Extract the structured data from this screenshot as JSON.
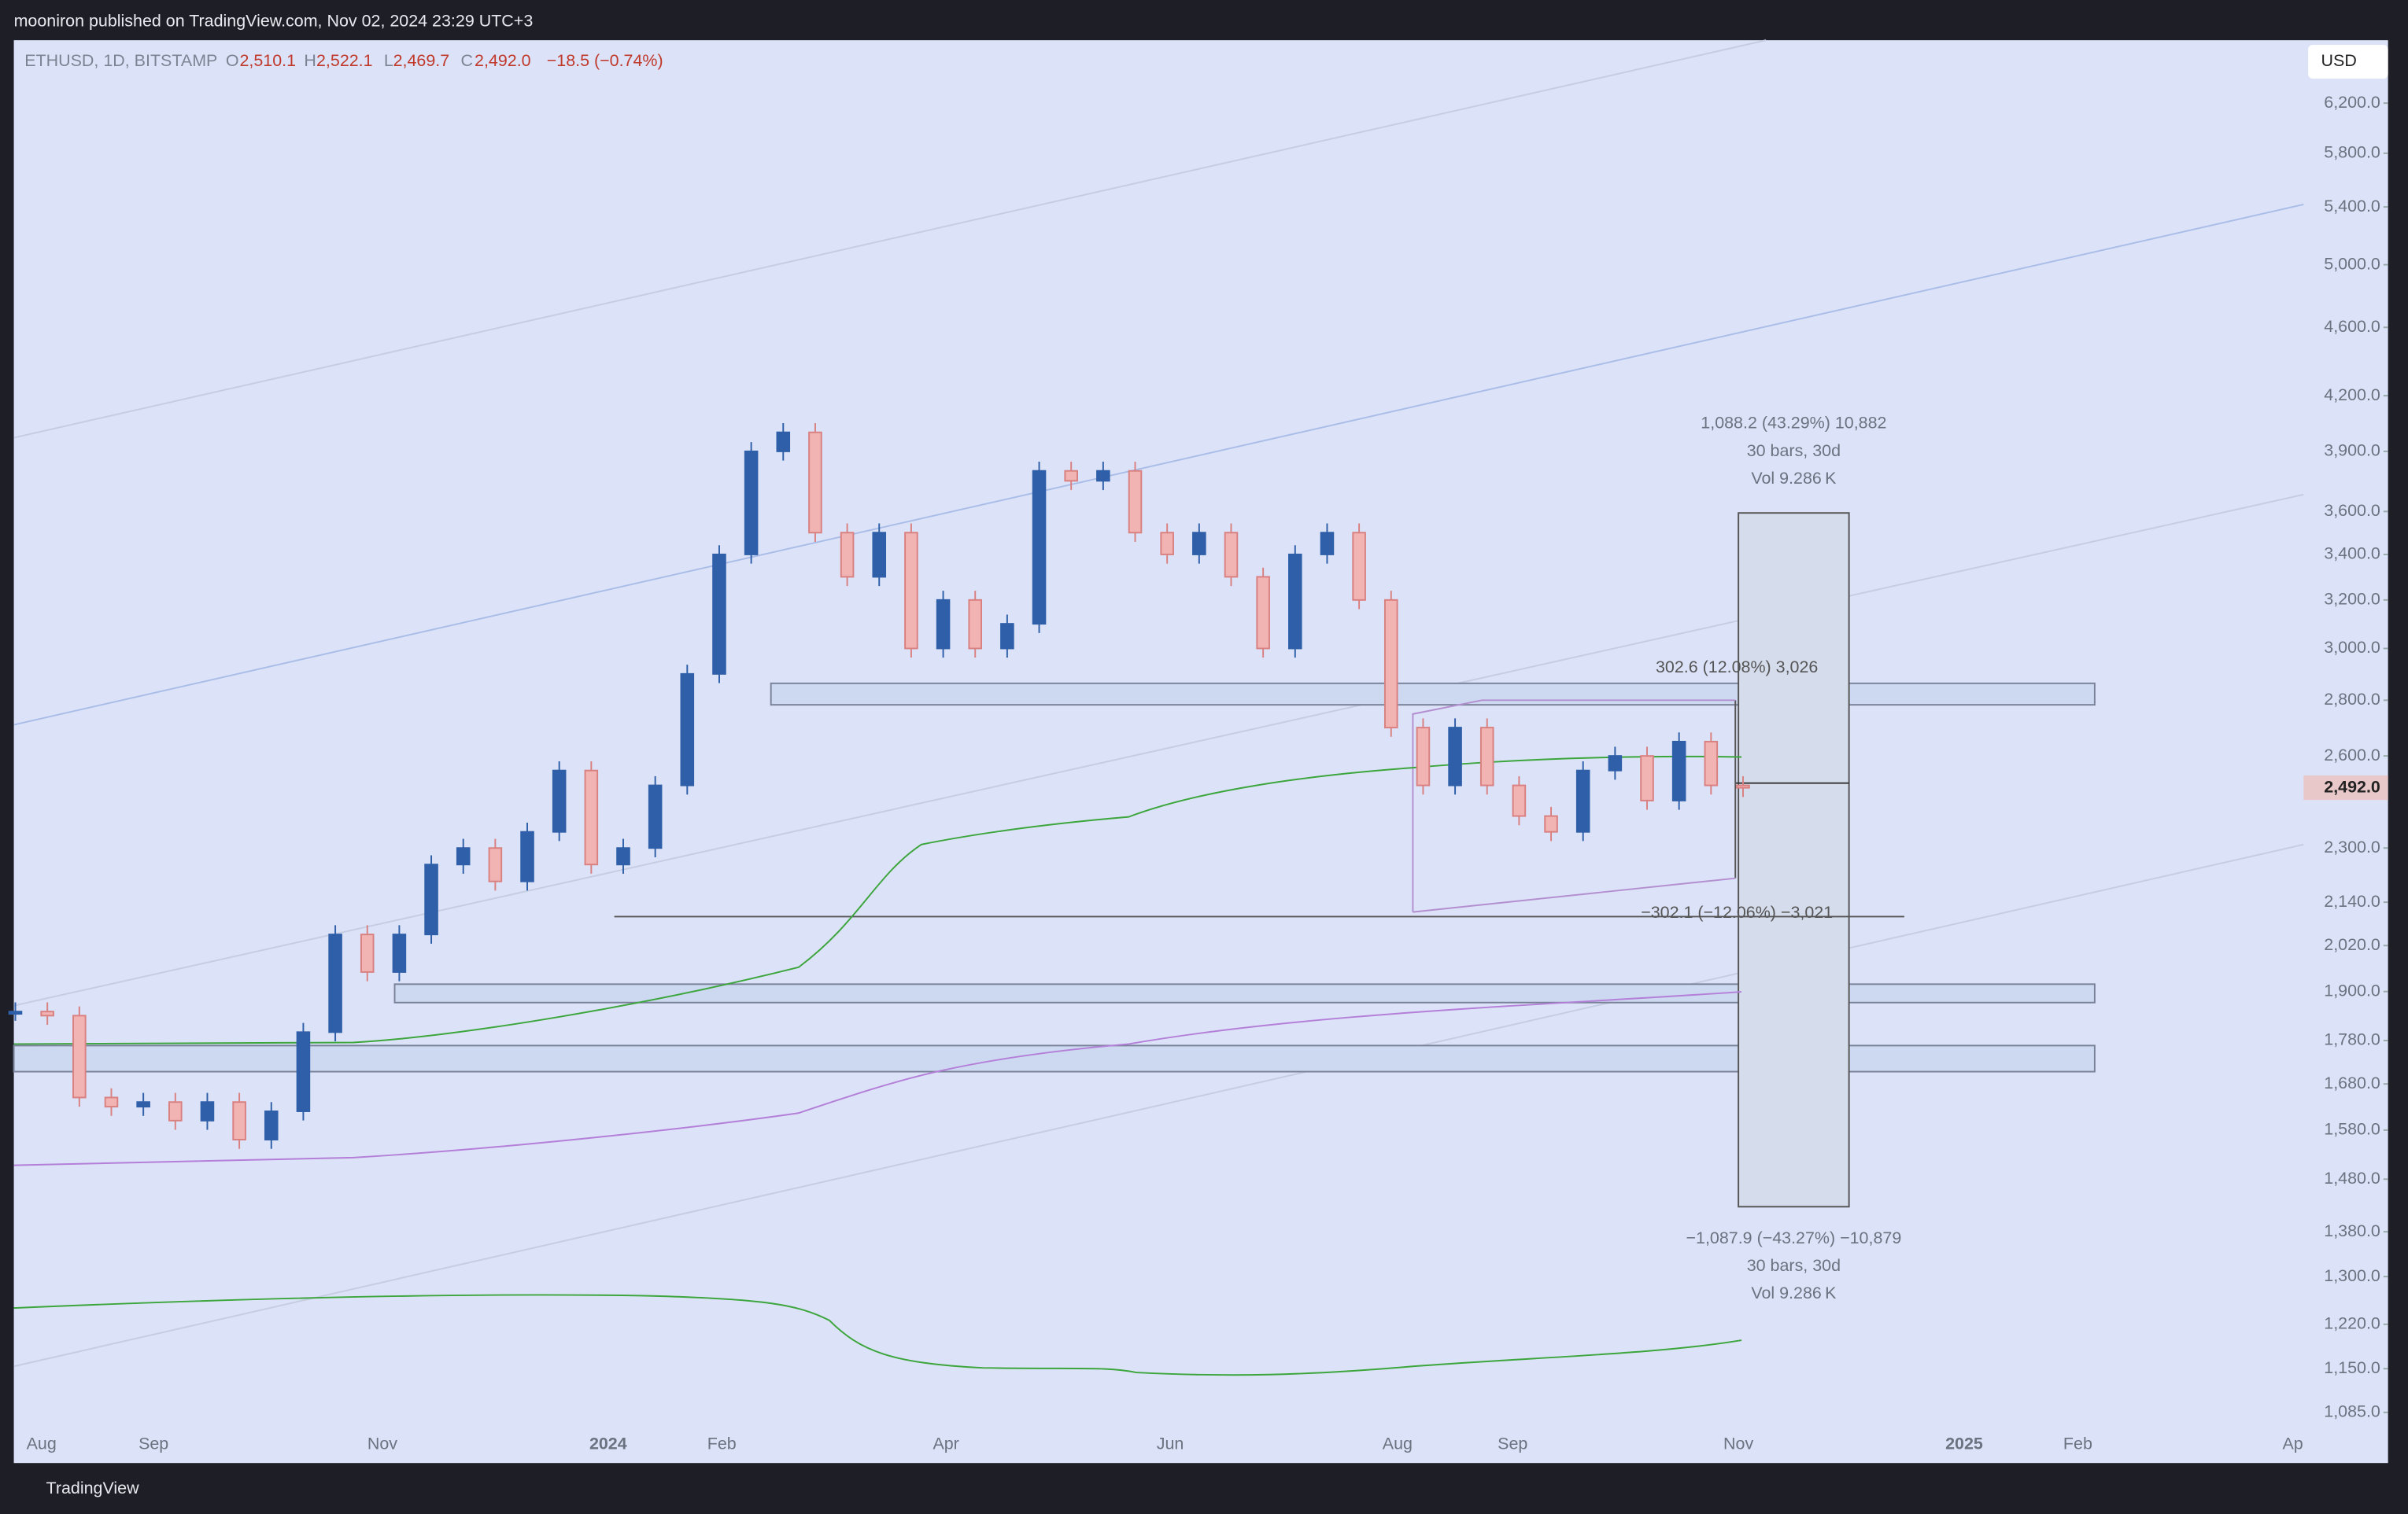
{
  "header": {
    "text": "mooniron published on TradingView.com, Nov 02, 2024 23:29 UTC+3"
  },
  "legend": {
    "symbol": "ETHUSD, 1D, BITSTAMP",
    "open_key": "O",
    "open": "2,510.1",
    "high_key": "H",
    "high": "2,522.1",
    "low_key": "L",
    "low": "2,469.7",
    "close_key": "C",
    "close": "2,492.0",
    "change": "−18.5 (−0.74%)"
  },
  "currency_button": "USD",
  "price_axis": {
    "log": true,
    "ylim": [
      1085,
      6200
    ],
    "ticks": [
      {
        "value": 6200,
        "label": "6,200.0"
      },
      {
        "value": 5800,
        "label": "5,800.0"
      },
      {
        "value": 5400,
        "label": "5,400.0"
      },
      {
        "value": 5000,
        "label": "5,000.0"
      },
      {
        "value": 4600,
        "label": "4,600.0"
      },
      {
        "value": 4200,
        "label": "4,200.0"
      },
      {
        "value": 3900,
        "label": "3,900.0"
      },
      {
        "value": 3600,
        "label": "3,600.0"
      },
      {
        "value": 3400,
        "label": "3,400.0"
      },
      {
        "value": 3200,
        "label": "3,200.0"
      },
      {
        "value": 3000,
        "label": "3,000.0"
      },
      {
        "value": 2800,
        "label": "2,800.0"
      },
      {
        "value": 2600,
        "label": "2,600.0"
      },
      {
        "value": 2300,
        "label": "2,300.0"
      },
      {
        "value": 2140,
        "label": "2,140.0"
      },
      {
        "value": 2020,
        "label": "2,020.0"
      },
      {
        "value": 1900,
        "label": "1,900.0"
      },
      {
        "value": 1780,
        "label": "1,780.0"
      },
      {
        "value": 1680,
        "label": "1,680.0"
      },
      {
        "value": 1580,
        "label": "1,580.0"
      },
      {
        "value": 1480,
        "label": "1,480.0"
      },
      {
        "value": 1380,
        "label": "1,380.0"
      },
      {
        "value": 1300,
        "label": "1,300.0"
      },
      {
        "value": 1220,
        "label": "1,220.0"
      },
      {
        "value": 1150,
        "label": "1,150.0"
      },
      {
        "value": 1085,
        "label": "1,085.0"
      }
    ],
    "last_price": {
      "value": 2492,
      "label": "2,492.0"
    }
  },
  "time_axis": [
    "Aug",
    "Sep",
    "Nov",
    "2024",
    "Feb",
    "Apr",
    "Jun",
    "Aug",
    "Sep",
    "Nov",
    "2025",
    "Feb",
    "Ap"
  ],
  "price_path": [
    1850,
    1840,
    1650,
    1630,
    1640,
    1600,
    1640,
    1560,
    1620,
    1800,
    2050,
    1950,
    2050,
    2250,
    2300,
    2200,
    2350,
    2550,
    2250,
    2300,
    2500,
    2900,
    3400,
    3900,
    4000,
    3500,
    3300,
    3500,
    3000,
    3200,
    3000,
    3100,
    3800,
    3750,
    3800,
    3500,
    3400,
    3500,
    3300,
    3000,
    3400,
    3500,
    3200,
    2700,
    2500,
    2700,
    2500,
    2400,
    2350,
    2550,
    2600,
    2450,
    2650,
    2500,
    2492
  ],
  "annotations": {
    "up_measure": [
      "1,088.2 (43.29%) 10,882",
      "30 bars, 30d",
      "Vol 9.286 K"
    ],
    "down_measure": [
      "−1,087.9 (−43.27%) −10,879",
      "30 bars, 30d",
      "Vol 9.286 K"
    ],
    "range_up": "302.6 (12.08%) 3,026",
    "range_down": "−302.1 (−12.06%) −3,021"
  },
  "footer": {
    "brand": "TradingView"
  }
}
